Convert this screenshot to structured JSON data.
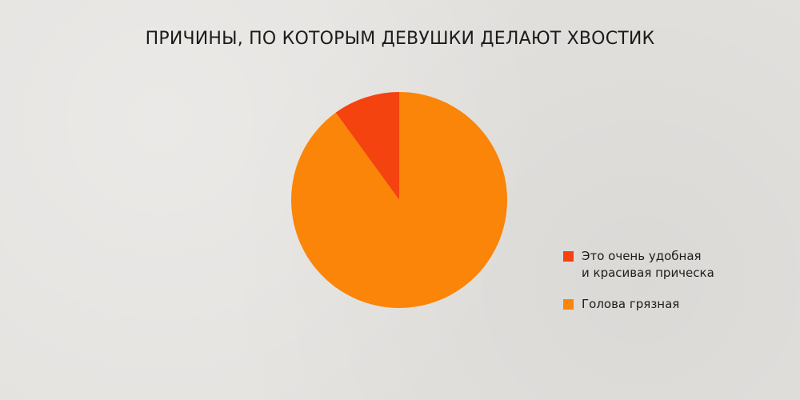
{
  "chart_data": {
    "type": "pie",
    "title": "ПРИЧИНЫ, ПО КОТОРЫМ ДЕВУШКИ ДЕЛАЮТ ХВОСТИК",
    "slices": [
      {
        "label": "Это очень удобная\nи красивая прическа",
        "value": 10,
        "color": "#f5430f"
      },
      {
        "label": "Голова грязная",
        "value": 90,
        "color": "#fb8508"
      }
    ],
    "start_angle_deg": 0,
    "direction": "counterclockwise",
    "legend_position": "right"
  }
}
